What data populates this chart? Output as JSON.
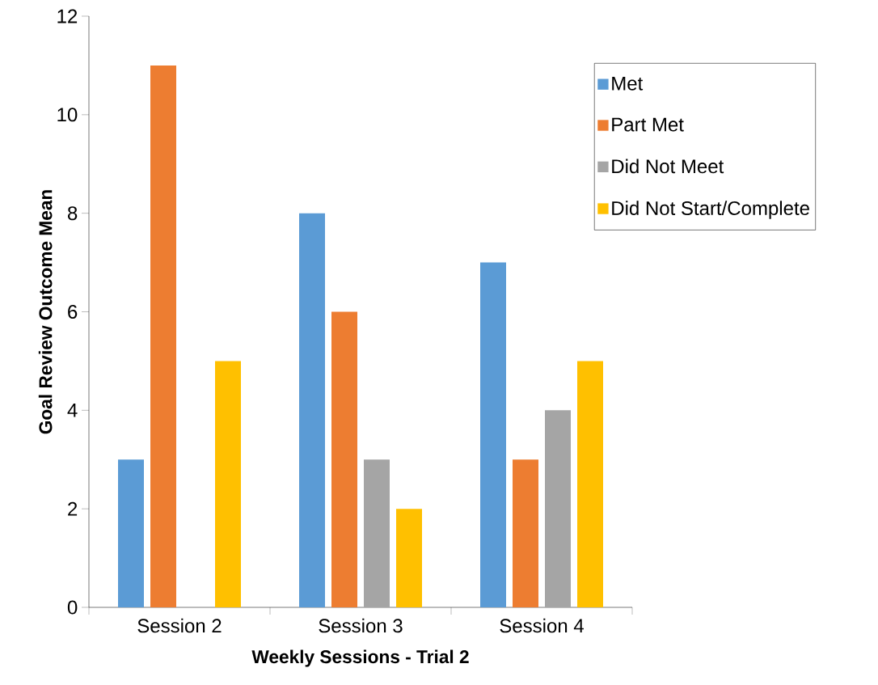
{
  "chart_data": {
    "type": "bar",
    "xlabel": "Weekly Sessions - Trial 2",
    "ylabel": "Goal Review Outcome Mean",
    "categories": [
      "Session 2",
      "Session 3",
      "Session 4"
    ],
    "series": [
      {
        "name": "Met",
        "color": "#5b9bd5",
        "values": [
          3,
          8,
          7
        ]
      },
      {
        "name": "Part Met",
        "color": "#ed7d31",
        "values": [
          11,
          6,
          3
        ]
      },
      {
        "name": "Did Not Meet",
        "color": "#a5a5a5",
        "values": [
          null,
          3,
          4
        ]
      },
      {
        "name": "Did Not Start/Complete",
        "color": "#ffc000",
        "values": [
          5,
          2,
          5
        ]
      }
    ],
    "ylim": [
      0,
      12
    ],
    "yticks": [
      0,
      2,
      4,
      6,
      8,
      10,
      12
    ],
    "grid": false,
    "legend": "right"
  }
}
